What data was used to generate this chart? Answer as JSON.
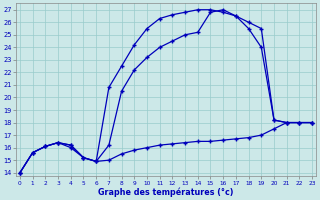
{
  "title": "Graphe des températures (°c)",
  "xlim_min": -0.3,
  "xlim_max": 23.3,
  "ylim_min": 13.7,
  "ylim_max": 27.5,
  "bg_color": "#cce8e8",
  "line_color": "#0000bb",
  "grid_color": "#99cccc",
  "curve1_x": [
    0,
    1,
    2,
    3,
    4,
    5,
    6,
    7,
    8,
    9,
    10,
    11,
    12,
    13,
    14,
    15,
    16,
    17,
    18,
    19,
    20,
    21,
    22,
    23
  ],
  "curve1_y": [
    14.0,
    15.6,
    16.1,
    16.4,
    16.2,
    15.2,
    14.9,
    16.2,
    20.5,
    22.2,
    23.2,
    24.0,
    24.5,
    25.0,
    25.2,
    26.8,
    27.0,
    26.5,
    25.5,
    24.0,
    18.2,
    18.0,
    18.0,
    18.0
  ],
  "curve2_x": [
    0,
    1,
    2,
    3,
    4,
    5,
    6,
    7,
    8,
    9,
    10,
    11,
    12,
    13,
    14,
    15,
    16,
    17,
    18,
    19,
    20,
    21,
    22,
    23
  ],
  "curve2_y": [
    14.0,
    15.6,
    16.1,
    16.4,
    16.2,
    15.2,
    14.9,
    20.8,
    22.5,
    24.2,
    25.5,
    26.3,
    26.6,
    26.8,
    27.0,
    27.0,
    26.8,
    26.5,
    26.0,
    25.5,
    18.2,
    18.0,
    18.0,
    18.0
  ],
  "curve3_x": [
    0,
    1,
    2,
    3,
    4,
    5,
    6,
    7,
    8,
    9,
    10,
    11,
    12,
    13,
    14,
    15,
    16,
    17,
    18,
    19,
    20,
    21,
    22,
    23
  ],
  "curve3_y": [
    14.0,
    15.6,
    16.1,
    16.4,
    16.0,
    15.2,
    14.9,
    15.0,
    15.5,
    15.8,
    16.0,
    16.2,
    16.3,
    16.4,
    16.5,
    16.5,
    16.6,
    16.7,
    16.8,
    17.0,
    17.5,
    18.0,
    18.0,
    18.0
  ]
}
